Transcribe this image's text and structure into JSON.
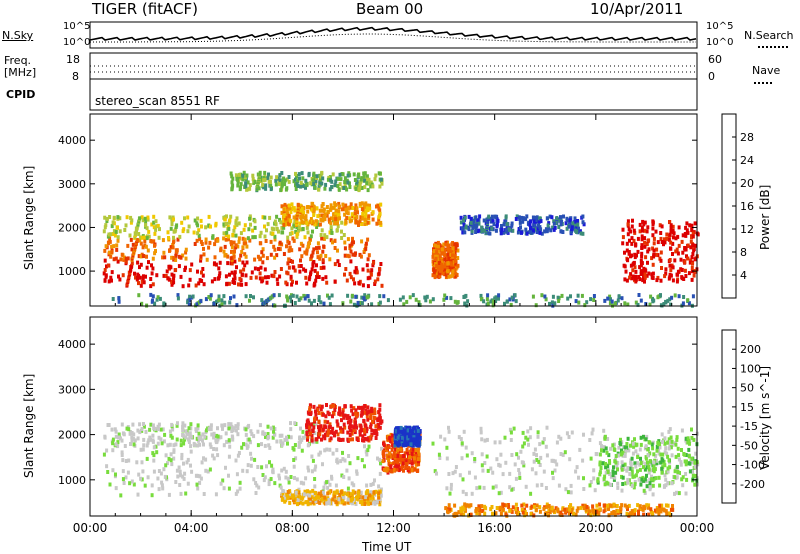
{
  "header": {
    "radar": "TIGER (fitACF)",
    "beam": "Beam 00",
    "date": "10/Apr/2011"
  },
  "top_panels": {
    "nsky_label": "N.Sky",
    "nsky_ticks": [
      "10^5",
      "10^0"
    ],
    "nsearch_label": "N.Search",
    "nsearch_ticks": [
      "10^5",
      "10^0"
    ],
    "freq_label": "Freq.",
    "freq_unit": "[MHz]",
    "freq_ticks": [
      "18",
      "8"
    ],
    "nave_label": "Nave",
    "nave_ticks": [
      "60",
      "0"
    ],
    "cpid_label": "CPID",
    "cpid_value": "stereo_scan 8551 RF"
  },
  "chart_data": [
    {
      "type": "heatmap",
      "panel": "power",
      "ylabel": "Slant Range [km]",
      "yticks": [
        "4000",
        "3000",
        "2000",
        "1000"
      ],
      "ylim": [
        200,
        4600
      ],
      "xlim": [
        0,
        24
      ],
      "colorbar_label": "Power [dB]",
      "colorbar_ticks": [
        "28",
        "24",
        "20",
        "16",
        "12",
        "8",
        "4"
      ],
      "colors": [
        "#1a1ad6",
        "#2850b4",
        "#3c8c78",
        "#64b43c",
        "#b4c83c",
        "#f0c800",
        "#f09600",
        "#f06400",
        "#e63200",
        "#dc0000"
      ],
      "regions": [
        {
          "t0": 0.5,
          "t1": 11.5,
          "r0": 700,
          "r1": 1300,
          "level": 9
        },
        {
          "t0": 0.5,
          "t1": 11.0,
          "r0": 1300,
          "r1": 1800,
          "level": 7
        },
        {
          "t0": 0.5,
          "t1": 10.0,
          "r0": 1800,
          "r1": 2300,
          "level": 4
        },
        {
          "t0": 7.5,
          "t1": 11.5,
          "r0": 2100,
          "r1": 2600,
          "level": 6
        },
        {
          "t0": 5.5,
          "t1": 11.5,
          "r0": 2900,
          "r1": 3300,
          "level": 3
        },
        {
          "t0": 13.5,
          "t1": 14.5,
          "r0": 900,
          "r1": 1700,
          "level": 7
        },
        {
          "t0": 14.5,
          "t1": 19.5,
          "r0": 1900,
          "r1": 2300,
          "level": 1
        },
        {
          "t0": 21.0,
          "t1": 24.0,
          "r0": 800,
          "r1": 2200,
          "level": 9
        },
        {
          "t0": 0.5,
          "t1": 24.0,
          "r0": 250,
          "r1": 500,
          "level": 2
        }
      ]
    },
    {
      "type": "heatmap",
      "panel": "velocity",
      "ylabel": "Slant Range [km]",
      "yticks": [
        "4000",
        "3000",
        "2000",
        "1000"
      ],
      "ylim": [
        200,
        4600
      ],
      "xlim": [
        0,
        24
      ],
      "xticks": [
        "00:00",
        "04:00",
        "08:00",
        "12:00",
        "16:00",
        "20:00",
        "00:00"
      ],
      "xlabel": "Time UT",
      "colorbar_label": "Velocity [m s^-1]",
      "colorbar_ticks": [
        "200",
        "100",
        "50",
        "15",
        "-15",
        "-50",
        "-100",
        "-200"
      ],
      "colors": [
        "#1a32c8",
        "#2878b4",
        "#3cb43c",
        "#78dc3c",
        "#c8c8c8",
        "#c8c8c8",
        "#f0b400",
        "#f08200",
        "#f05000",
        "#e61414"
      ],
      "regions": [
        {
          "t0": 0.5,
          "t1": 11.5,
          "r0": 700,
          "r1": 1800,
          "level": 4
        },
        {
          "t0": 0.5,
          "t1": 9.0,
          "r0": 1800,
          "r1": 2300,
          "level": 4
        },
        {
          "t0": 8.5,
          "t1": 11.5,
          "r0": 1900,
          "r1": 2700,
          "level": 9
        },
        {
          "t0": 11.5,
          "t1": 13.0,
          "r0": 1200,
          "r1": 2100,
          "level": 8
        },
        {
          "t0": 12.0,
          "t1": 13.0,
          "r0": 1800,
          "r1": 2200,
          "level": 0
        },
        {
          "t0": 13.5,
          "t1": 24.0,
          "r0": 700,
          "r1": 2200,
          "level": 4
        },
        {
          "t0": 20.0,
          "t1": 24.0,
          "r0": 900,
          "r1": 2000,
          "level": 3
        },
        {
          "t0": 7.5,
          "t1": 11.5,
          "r0": 500,
          "r1": 800,
          "level": 6
        },
        {
          "t0": 14.0,
          "t1": 23.0,
          "r0": 250,
          "r1": 500,
          "level": 7
        }
      ]
    }
  ]
}
